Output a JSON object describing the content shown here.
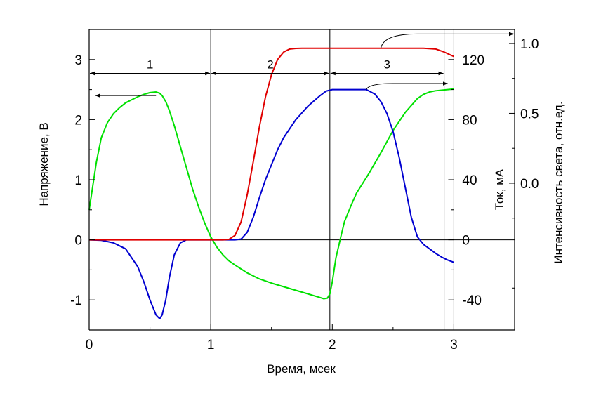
{
  "chart_data": {
    "type": "line",
    "xlabel": "Время, мсек",
    "x_range": [
      0,
      3.5
    ],
    "x_ticks": [
      0,
      1,
      2,
      3
    ],
    "y_left": {
      "label": "Напряжение, В",
      "range": [
        -1.5,
        3.5
      ],
      "ticks": [
        -1,
        0,
        1,
        2,
        3
      ]
    },
    "y_right1": {
      "label": "Ток, мА",
      "range": [
        -60,
        140
      ],
      "ticks": [
        -40,
        0,
        40,
        80,
        120
      ]
    },
    "y_right2": {
      "label": "Интенсивность света, отн.ед.",
      "range": [
        -1.05,
        1.1
      ],
      "ticks": [
        0.0,
        0.5,
        1.0
      ],
      "tick_labels": [
        "0.0",
        "0.5",
        "1.0"
      ]
    },
    "regions": [
      {
        "label": "1",
        "from": 0,
        "to": 1,
        "y": 2.77
      },
      {
        "label": "2",
        "from": 1,
        "to": 1.98,
        "y": 2.77
      },
      {
        "label": "3",
        "from": 1.98,
        "to": 2.92,
        "y": 2.77
      }
    ],
    "vertical_lines": [
      1,
      1.98,
      2.92,
      3
    ],
    "zero_line": 0,
    "series": [
      {
        "color": "#00e000",
        "axis": "y_left",
        "x": [
          0,
          0.03,
          0.06,
          0.1,
          0.15,
          0.2,
          0.25,
          0.3,
          0.35,
          0.4,
          0.45,
          0.5,
          0.55,
          0.58,
          0.6,
          0.63,
          0.66,
          0.7,
          0.75,
          0.8,
          0.85,
          0.9,
          0.95,
          1.0,
          1.05,
          1.1,
          1.15,
          1.2,
          1.3,
          1.4,
          1.5,
          1.6,
          1.7,
          1.8,
          1.9,
          1.93,
          1.96,
          1.98,
          2.0,
          2.03,
          2.07,
          2.1,
          2.15,
          2.2,
          2.3,
          2.4,
          2.5,
          2.6,
          2.7,
          2.75,
          2.8,
          2.85,
          2.9,
          2.95,
          3.0
        ],
        "y": [
          0.5,
          0.9,
          1.3,
          1.7,
          1.95,
          2.1,
          2.2,
          2.28,
          2.33,
          2.38,
          2.42,
          2.45,
          2.46,
          2.44,
          2.4,
          2.3,
          2.15,
          1.9,
          1.55,
          1.2,
          0.85,
          0.55,
          0.28,
          0.05,
          -0.12,
          -0.25,
          -0.35,
          -0.42,
          -0.55,
          -0.65,
          -0.72,
          -0.78,
          -0.84,
          -0.9,
          -0.96,
          -0.98,
          -0.97,
          -0.9,
          -0.7,
          -0.3,
          0.05,
          0.3,
          0.55,
          0.78,
          1.1,
          1.45,
          1.82,
          2.12,
          2.35,
          2.42,
          2.46,
          2.48,
          2.49,
          2.5,
          2.51
        ]
      },
      {
        "color": "#0000d0",
        "axis": "y_right1",
        "x": [
          0,
          0.1,
          0.2,
          0.3,
          0.4,
          0.45,
          0.5,
          0.55,
          0.58,
          0.6,
          0.63,
          0.66,
          0.7,
          0.75,
          0.8,
          0.85,
          0.9,
          1.0,
          1.1,
          1.2,
          1.25,
          1.3,
          1.35,
          1.4,
          1.45,
          1.5,
          1.55,
          1.6,
          1.7,
          1.8,
          1.9,
          1.95,
          2.0,
          2.1,
          2.2,
          2.28,
          2.35,
          2.4,
          2.45,
          2.5,
          2.55,
          2.6,
          2.65,
          2.7,
          2.75,
          2.8,
          2.85,
          2.9,
          2.95,
          3.0
        ],
        "y": [
          0,
          -0.3,
          -2,
          -6,
          -18,
          -28,
          -40,
          -50,
          -52.5,
          -50,
          -40,
          -25,
          -10,
          -2,
          0,
          0,
          0,
          0,
          0,
          0,
          0.5,
          5,
          15,
          28,
          40,
          50,
          60,
          68,
          80,
          89,
          96,
          99,
          100,
          100,
          100,
          100,
          97,
          92,
          84,
          72,
          55,
          35,
          15,
          2,
          -3,
          -6,
          -9,
          -11.5,
          -13.5,
          -15
        ]
      },
      {
        "color": "#e00000",
        "axis": "y_right1",
        "x": [
          0,
          0.5,
          1.0,
          1.1,
          1.15,
          1.2,
          1.25,
          1.3,
          1.35,
          1.4,
          1.45,
          1.5,
          1.55,
          1.6,
          1.65,
          1.7,
          1.75,
          1.8,
          1.9,
          2.0,
          2.2,
          2.5,
          2.75,
          2.85,
          2.92,
          2.96,
          3.0
        ],
        "y": [
          0,
          0,
          0,
          0,
          0.3,
          3,
          12,
          30,
          52,
          75,
          95,
          110,
          120,
          125,
          127,
          127.4,
          127.5,
          127.5,
          127.5,
          127.5,
          127.5,
          127.5,
          127.5,
          127,
          125,
          123.5,
          122
        ]
      }
    ]
  }
}
